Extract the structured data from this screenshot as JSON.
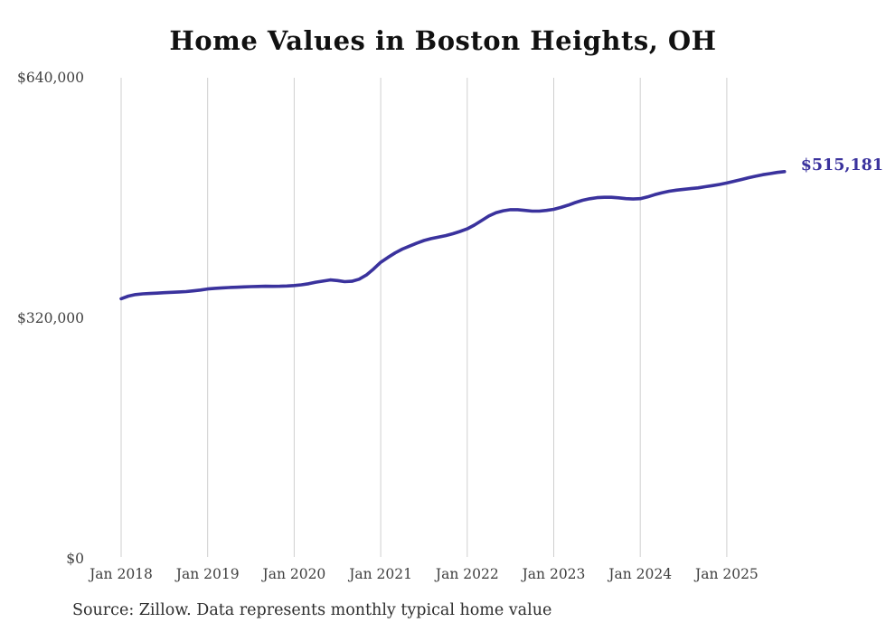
{
  "page": {
    "title": "Home Values in Boston Heights, OH",
    "source_note": "Source: Zillow. Data represents monthly typical home value"
  },
  "chart_data": {
    "type": "line",
    "title": "Home Values in Boston Heights, OH",
    "source": "Source: Zillow. Data represents monthly typical home value",
    "xlabel": "",
    "ylabel": "",
    "ylim": [
      0,
      640000
    ],
    "grid": "vertical-year-gridlines-only",
    "legend_position": "none",
    "x_tick_labels": [
      "Jan 2018",
      "Jan 2019",
      "Jan 2020",
      "Jan 2021",
      "Jan 2022",
      "Jan 2023",
      "Jan 2024",
      "Jan 2025"
    ],
    "y_ticks": [
      {
        "label": "$0",
        "value": 0
      },
      {
        "label": "$320,000",
        "value": 320000
      },
      {
        "label": "$640,000",
        "value": 640000
      }
    ],
    "line_color": "#3a329d",
    "end_label": "$515,181",
    "end_value": 515181,
    "series": [
      {
        "name": "Typical home value",
        "frequency": "monthly",
        "start_month": "Jan 2018",
        "end_month": "Sep 2025",
        "values": [
          346000,
          349500,
          351500,
          352500,
          353000,
          353500,
          354000,
          354500,
          355000,
          355500,
          356500,
          357500,
          359000,
          359800,
          360400,
          360900,
          361300,
          361700,
          362100,
          362400,
          362600,
          362500,
          362600,
          363000,
          363500,
          364500,
          366000,
          368000,
          369500,
          371000,
          370200,
          368700,
          369200,
          372000,
          377500,
          385500,
          394500,
          401000,
          407000,
          412000,
          416000,
          420000,
          423500,
          426000,
          428000,
          430000,
          432500,
          435500,
          439000,
          444000,
          450000,
          456000,
          460500,
          463000,
          464500,
          464500,
          463500,
          462500,
          462500,
          463500,
          465000,
          467500,
          470500,
          474000,
          477000,
          479000,
          480500,
          481000,
          481000,
          480200,
          479200,
          478700,
          479200,
          481500,
          484500,
          487000,
          489000,
          490500,
          491500,
          492500,
          493500,
          495000,
          496500,
          498000,
          500000,
          502200,
          504500,
          507000,
          509000,
          511000,
          512500,
          514000,
          515181
        ]
      }
    ]
  }
}
